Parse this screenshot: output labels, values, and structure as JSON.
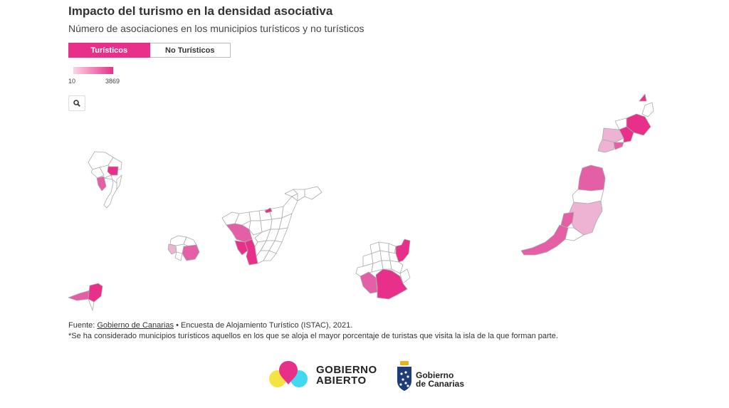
{
  "header": {
    "title": "Impacto del turismo en la densidad asociativa",
    "subtitle": "Número de asociaciones en los municipios turísticos y no turísticos"
  },
  "toggle": {
    "active_label": "Turísticos",
    "inactive_label": "No Turísticos"
  },
  "legend": {
    "min": "10",
    "max": "3869"
  },
  "colors": {
    "accent": "#e8308a",
    "light": "#eeb3d2",
    "mid": "#e55fa6"
  },
  "search": {
    "icon": "search-icon"
  },
  "footer": {
    "source_prefix": "Fuente:",
    "source_link": "Gobierno de Canarias",
    "source_rest": "• Encuesta de Alojamiento Turístico (ISTAC), 2021.",
    "note": "*Se ha considerado municipios turísticos aquellos en los que se aloja el mayor porcentaje de turistas que visita la isla de la que forman parte."
  },
  "logos": {
    "gobierno_abierto_line1": "GOBIERNO",
    "gobierno_abierto_line2": "ABIERTO",
    "gobierno_canarias_line1": "Gobierno",
    "gobierno_canarias_line2": "de Canarias"
  }
}
